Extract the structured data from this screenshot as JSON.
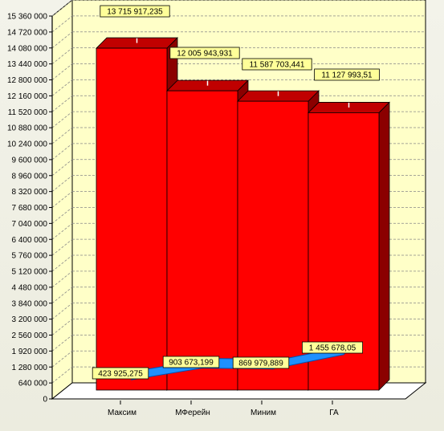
{
  "chart_data": {
    "type": "bar",
    "categories": [
      "Максим",
      "МФерейн",
      "Миним",
      "ГА"
    ],
    "series": [
      {
        "type": "bar",
        "values": [
          13715917.235,
          12005943.931,
          11587703.441,
          11127993.51
        ],
        "labels": [
          "13 715 917,235",
          "12 005 943,931",
          "11 587 703,441",
          "11 127 993,51"
        ],
        "color": "#ff0000"
      },
      {
        "type": "line",
        "values": [
          423925.275,
          903673.199,
          869979.889,
          1455678.05
        ],
        "labels": [
          "423 925,275",
          "903 673,199",
          "869 979,889",
          "1 455 678,05"
        ],
        "color": "#1e90ff"
      }
    ],
    "ylim": [
      0,
      15360000
    ],
    "yticks": [
      0,
      640000,
      1280000,
      1920000,
      2560000,
      3200000,
      3840000,
      4480000,
      5120000,
      5760000,
      6400000,
      7040000,
      7680000,
      8320000,
      8960000,
      9600000,
      10240000,
      10880000,
      11520000,
      12160000,
      12800000,
      13440000,
      14080000,
      14720000,
      15360000
    ],
    "ytick_labels": [
      "0",
      "640 000",
      "1 280 000",
      "1 920 000",
      "2 560 000",
      "3 200 000",
      "3 840 000",
      "4 480 000",
      "5 120 000",
      "5 760 000",
      "6 400 000",
      "7 040 000",
      "7 680 000",
      "8 320 000",
      "8 960 000",
      "9 600 000",
      "10 240 000",
      "10 880 000",
      "11 520 000",
      "12 160 000",
      "12 800 000",
      "13 440 000",
      "14 080 000",
      "14 720 000",
      "15 360 000"
    ],
    "grid": true,
    "three_d": true,
    "title": "",
    "xlabel": "",
    "ylabel": ""
  },
  "colors": {
    "wall": "#ffffc8",
    "floor": "#ffffff",
    "bar_front": "#ff0000",
    "bar_side": "#8b0000",
    "bar_top": "#c00000",
    "line_top": "#1e90ff",
    "line_side": "#0050b0",
    "label_bg": "#ffff99"
  }
}
